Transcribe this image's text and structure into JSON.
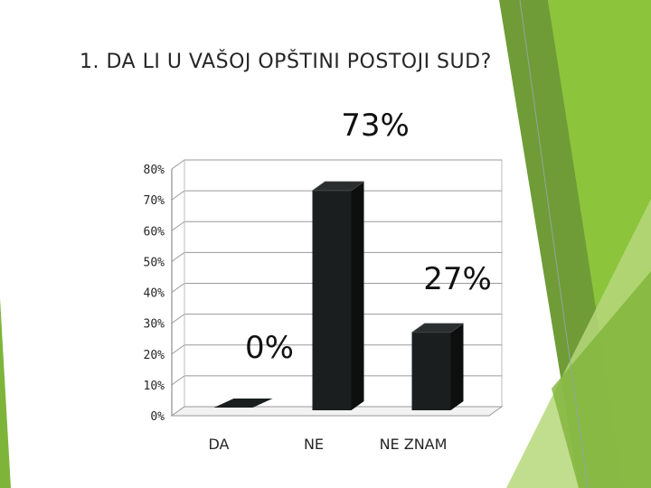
{
  "slide": {
    "title": "1. DA LI U VAŠOJ OPŠTINI POSTOJI SUD?"
  },
  "colors": {
    "bar": "#1a1e1e",
    "accent_dark": "#6f9c37",
    "accent_mid": "#8cc43c",
    "accent_light": "#b6d77a"
  },
  "chart_data": {
    "type": "bar",
    "categories": [
      "DA",
      "NE",
      "NE ZNAM"
    ],
    "values": [
      0,
      73,
      27
    ],
    "value_labels": [
      "0%",
      "73%",
      "27%"
    ],
    "y_ticks": [
      "0%",
      "10%",
      "20%",
      "30%",
      "40%",
      "50%",
      "60%",
      "70%",
      "80%"
    ],
    "ylim": [
      0,
      80
    ],
    "grid": true,
    "legend": "none",
    "title": "",
    "xlabel": "",
    "ylabel": ""
  }
}
